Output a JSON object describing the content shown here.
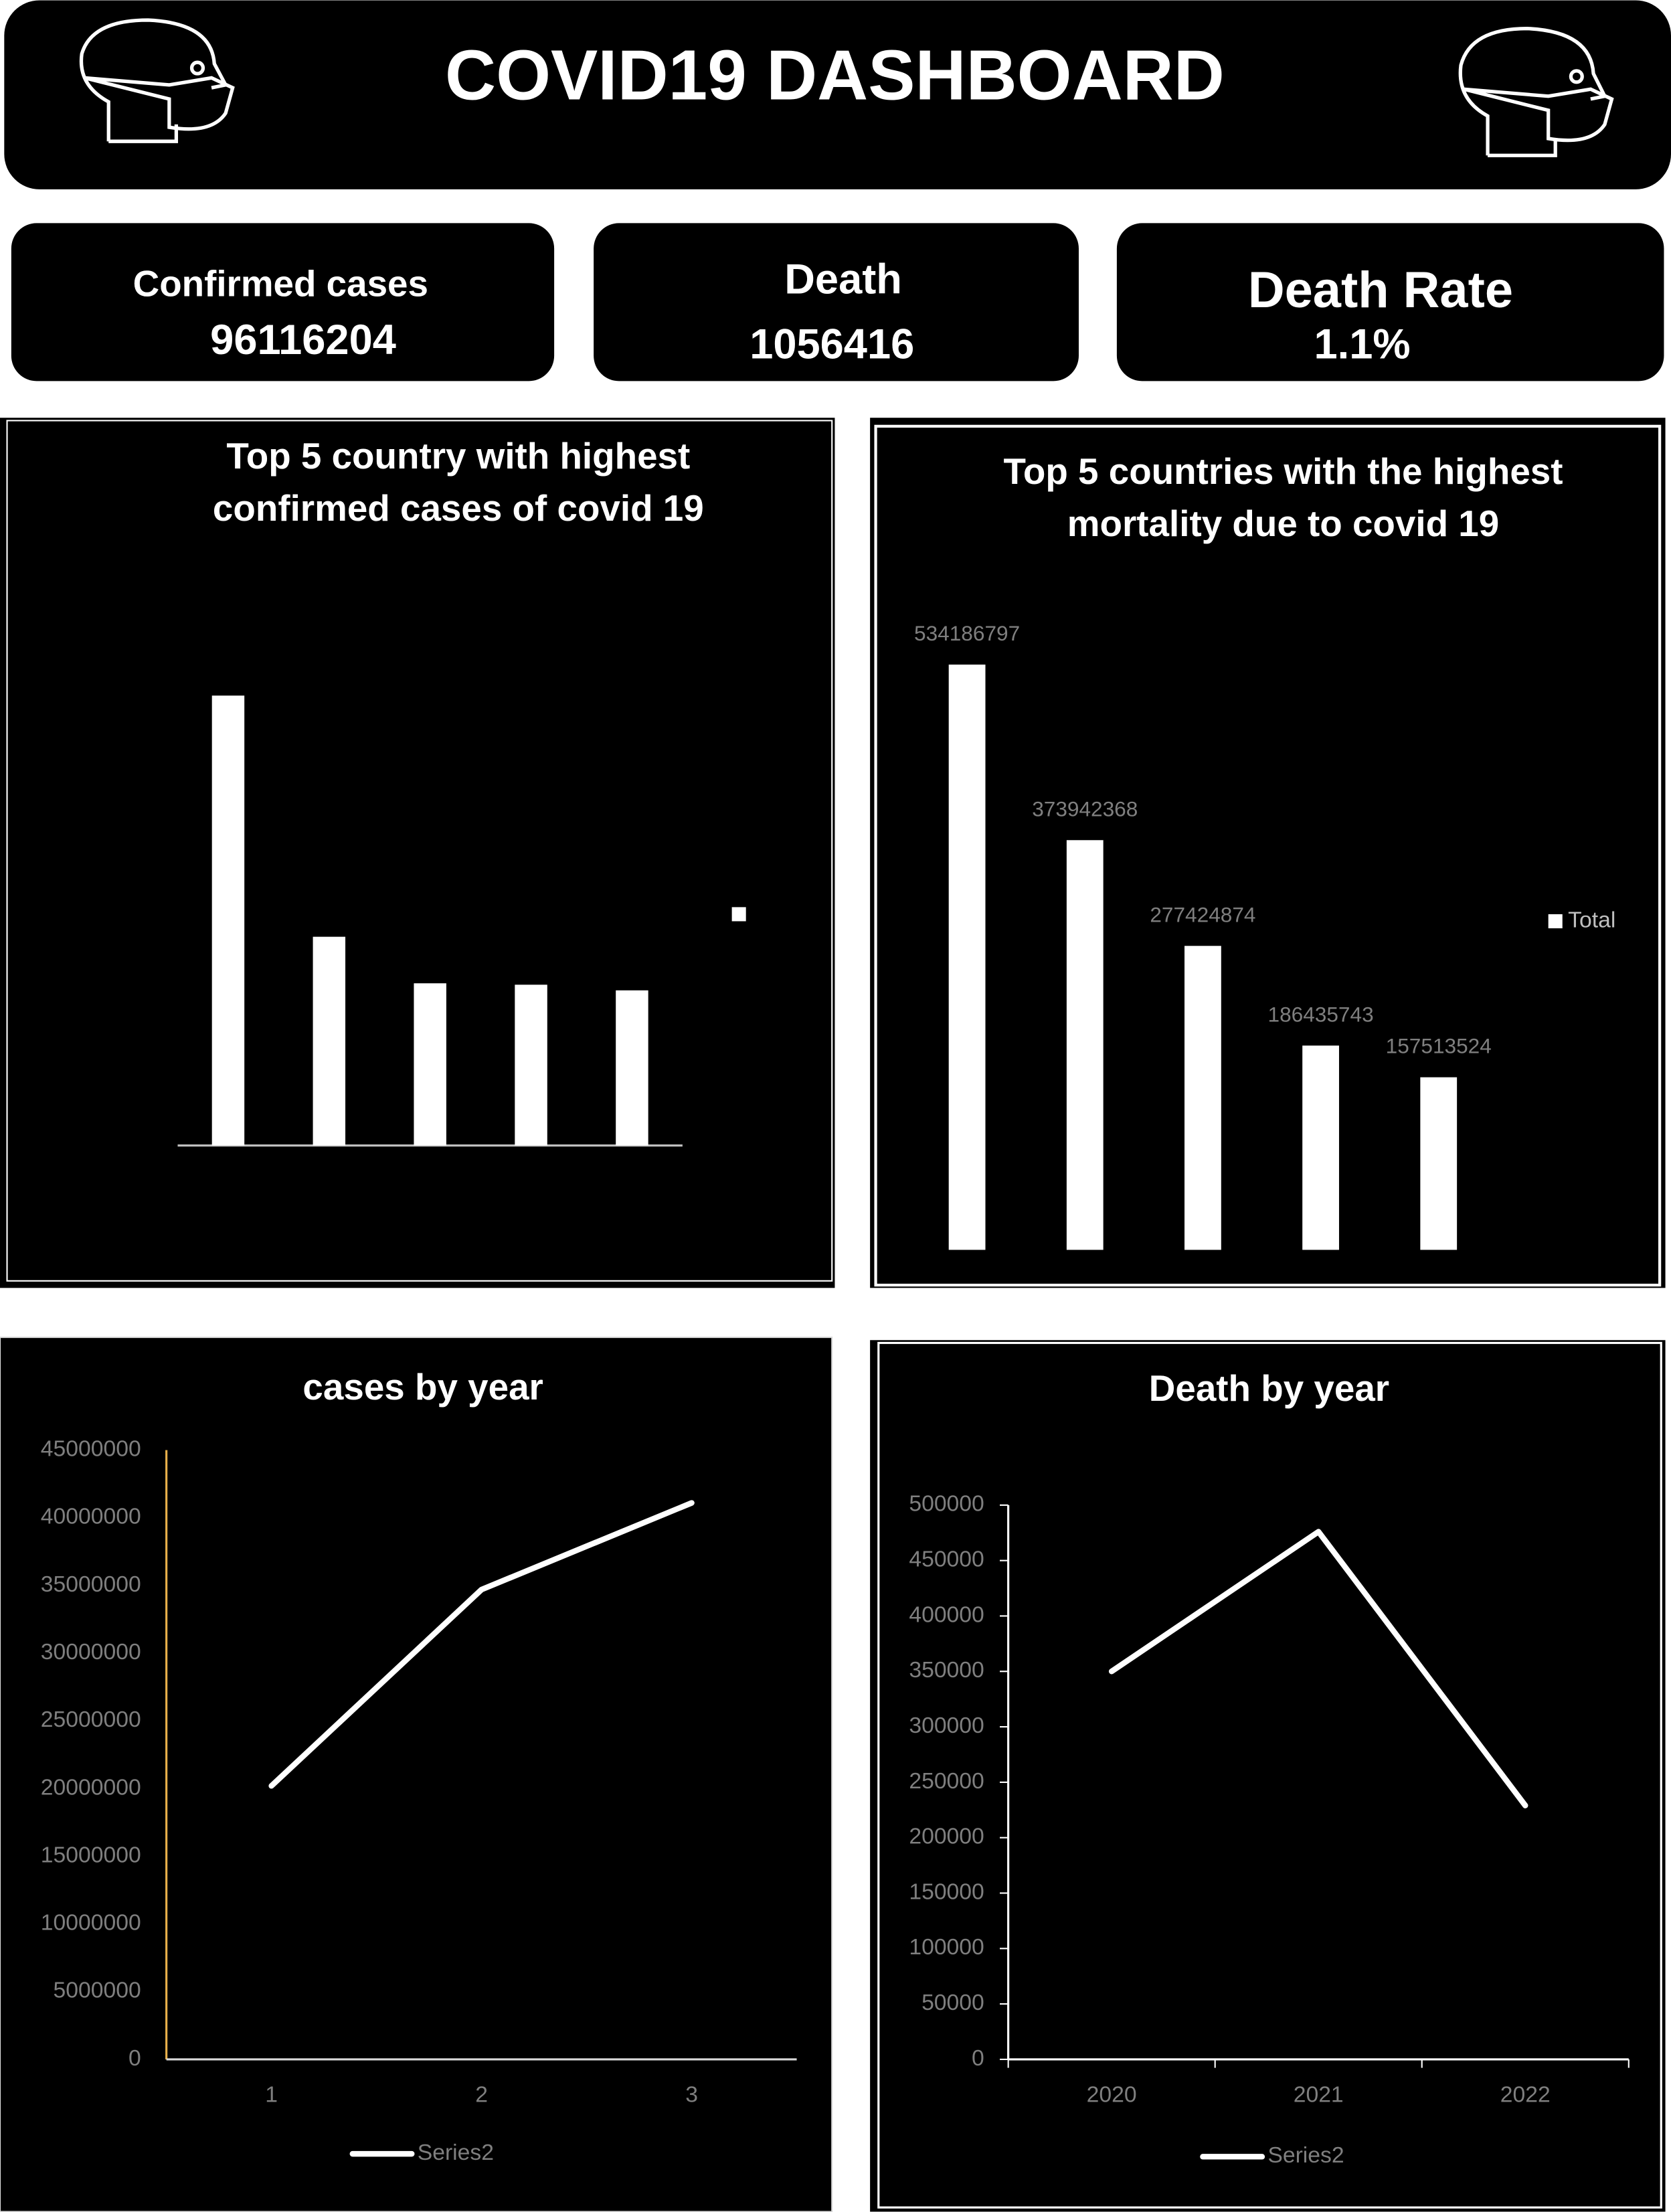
{
  "header": {
    "title": "COVID19 DASHBOARD"
  },
  "kpis": [
    {
      "label": "Confirmed cases",
      "value": "96116204"
    },
    {
      "label": "Death",
      "value": "1056416"
    },
    {
      "label": "Death Rate",
      "value": "1.1%"
    }
  ],
  "chart_data": [
    {
      "type": "bar",
      "title": "Top 5 country with highest confirmed cases of covid 19",
      "values": [
        319,
        148,
        115,
        114,
        110
      ],
      "color": "#ffffff"
    },
    {
      "type": "bar",
      "title": "Top 5 countries with  the highest mortality due to covid 19",
      "series": [
        {
          "name": "Total",
          "color": "#ffffff",
          "values": [
            534186797,
            373942368,
            277424874,
            186435743,
            157513524
          ]
        }
      ],
      "data_labels": true
    },
    {
      "type": "line",
      "title": "cases by year",
      "categories": [
        1,
        2,
        3
      ],
      "series": [
        {
          "name": "Series2",
          "color": "#ffffff",
          "values": [
            20200000,
            34700000,
            41100000
          ]
        }
      ],
      "ylim": [
        0,
        45000000
      ],
      "yticks": [
        0,
        5000000,
        10000000,
        15000000,
        20000000,
        25000000,
        30000000,
        35000000,
        40000000,
        45000000
      ]
    },
    {
      "type": "line",
      "title": "Death by year",
      "categories": [
        2020,
        2021,
        2022
      ],
      "series": [
        {
          "name": "Series2",
          "color": "#ffffff",
          "values": [
            350000,
            476000,
            229000
          ]
        }
      ],
      "ylim": [
        0,
        500000
      ],
      "yticks": [
        0,
        50000,
        100000,
        150000,
        200000,
        250000,
        300000,
        350000,
        400000,
        450000,
        500000
      ]
    }
  ]
}
